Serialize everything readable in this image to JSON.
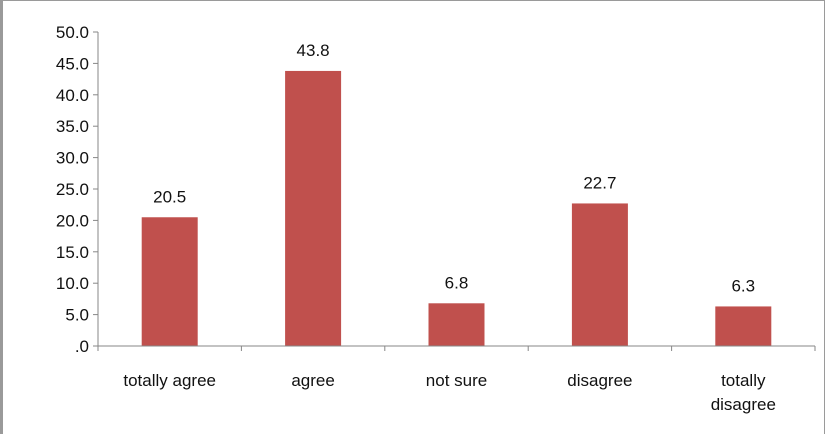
{
  "chart_data": {
    "type": "bar",
    "categories": [
      "totally agree",
      "agree",
      "not sure",
      "disagree",
      "totally disagree"
    ],
    "category_lines": [
      [
        "totally agree"
      ],
      [
        "agree"
      ],
      [
        "not sure"
      ],
      [
        "disagree"
      ],
      [
        "totally",
        "disagree"
      ]
    ],
    "values": [
      20.5,
      43.8,
      6.8,
      22.7,
      6.3
    ],
    "data_labels": [
      "20.5",
      "43.8",
      "6.8",
      "22.7",
      "6.3"
    ],
    "ylim": [
      0,
      50
    ],
    "yticks": [
      0,
      5,
      10,
      15,
      20,
      25,
      30,
      35,
      40,
      45,
      50
    ],
    "ytick_labels": [
      ".0",
      "5.0",
      "10.0",
      "15.0",
      "20.0",
      "25.0",
      "30.0",
      "35.0",
      "40.0",
      "45.0",
      "50.0"
    ],
    "bar_color": "#c0504d",
    "axis_color": "#878787",
    "grid": false,
    "legend": "none",
    "title": "",
    "xlabel": "",
    "ylabel": ""
  }
}
